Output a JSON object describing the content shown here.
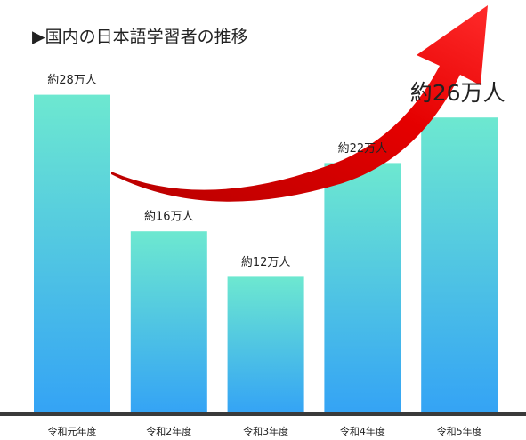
{
  "chart_data": {
    "type": "bar",
    "title": "▶国内の日本語学習者の推移",
    "categories": [
      "令和元年度",
      "令和2年度",
      "令和3年度",
      "令和4年度",
      "令和5年度"
    ],
    "values": [
      28,
      16,
      12,
      22,
      26
    ],
    "value_labels": [
      "約28万人",
      "約16万人",
      "約12万人",
      "約22万人",
      "約26万人"
    ],
    "color": [
      "#6de8d0",
      "#34a3f5"
    ]
  }
}
